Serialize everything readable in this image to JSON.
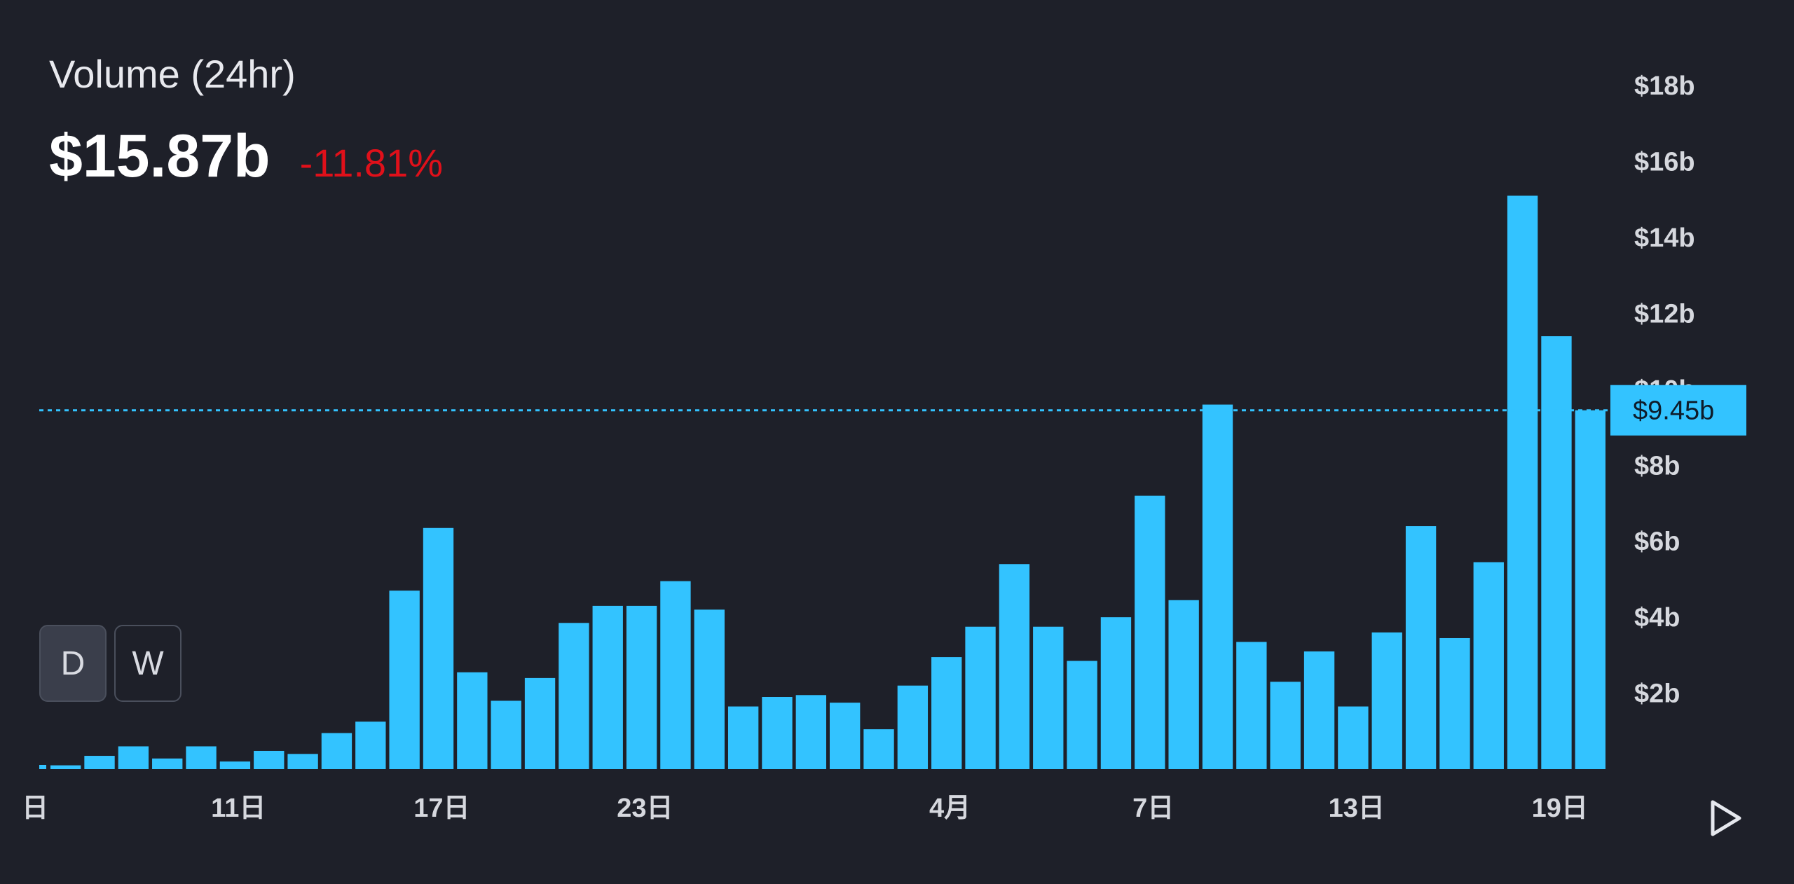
{
  "header": {
    "title": "Volume (24hr)",
    "value": "$15.87b",
    "change": "-11.81%"
  },
  "toggles": {
    "day": "D",
    "week": "W",
    "active": "D"
  },
  "colors": {
    "bar": "#33c3ff",
    "background": "#1e2029",
    "negative": "#e0101a"
  },
  "icons": {
    "play": "play-triangle-icon"
  },
  "chart_data": {
    "type": "bar",
    "title": "Volume (24hr)",
    "xlabel": "",
    "ylabel": "",
    "ylim": [
      0,
      19
    ],
    "y_unit": "billion USD",
    "y_ticks": [
      {
        "value": 2,
        "label": "$2b"
      },
      {
        "value": 4,
        "label": "$4b"
      },
      {
        "value": 6,
        "label": "$6b"
      },
      {
        "value": 8,
        "label": "$8b"
      },
      {
        "value": 10,
        "label": "$10b"
      },
      {
        "value": 12,
        "label": "$12b"
      },
      {
        "value": 14,
        "label": "$14b"
      },
      {
        "value": 16,
        "label": "$16b"
      },
      {
        "value": 18,
        "label": "$18b"
      }
    ],
    "x_ticks": [
      {
        "index": -0.9,
        "label": "日"
      },
      {
        "index": 5.1,
        "label": "11日"
      },
      {
        "index": 11.1,
        "label": "17日"
      },
      {
        "index": 17.1,
        "label": "23日"
      },
      {
        "index": 26.1,
        "label": "4月"
      },
      {
        "index": 32.1,
        "label": "7日"
      },
      {
        "index": 38.1,
        "label": "13日"
      },
      {
        "index": 44.1,
        "label": "19日"
      }
    ],
    "values": [
      0.1,
      0.35,
      0.6,
      0.28,
      0.6,
      0.2,
      0.48,
      0.4,
      0.95,
      1.25,
      4.7,
      6.35,
      2.55,
      1.8,
      2.4,
      3.85,
      4.3,
      4.3,
      4.95,
      4.2,
      1.65,
      1.9,
      1.95,
      1.75,
      1.05,
      2.2,
      2.95,
      3.75,
      5.4,
      3.75,
      2.85,
      4.0,
      7.2,
      4.45,
      9.6,
      3.35,
      2.3,
      3.1,
      1.65,
      3.6,
      6.4,
      3.45,
      5.45,
      15.1,
      11.4,
      9.45
    ],
    "current_value": 9.45,
    "current_label": "$9.45b"
  }
}
